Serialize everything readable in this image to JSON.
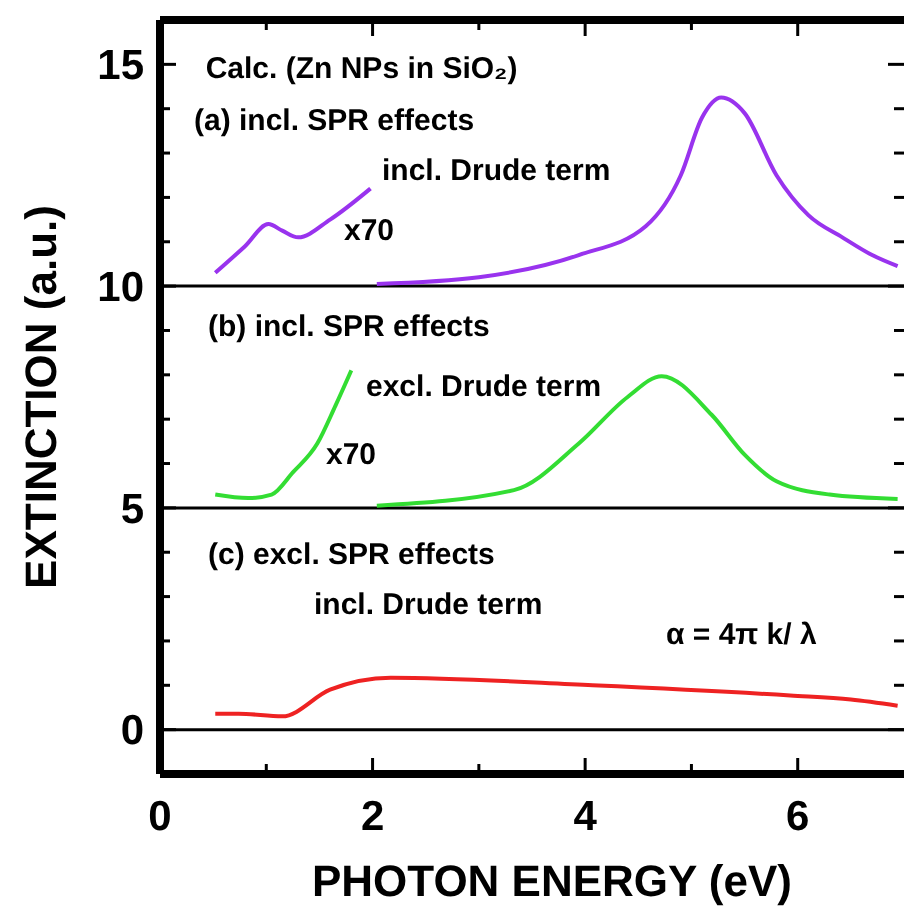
{
  "chart_data": {
    "type": "line",
    "title": "Calc. (Zn NPs in SiO₂)",
    "xlabel": "PHOTON  ENERGY  (eV)",
    "ylabel": "EXTINCTION  (a.u.)",
    "xlim": [
      0,
      7
    ],
    "ylim": [
      -1,
      16
    ],
    "xticks": [
      0,
      {
        "value": 1,
        "label": null
      },
      2,
      {
        "value": 3,
        "label": null
      },
      4,
      {
        "value": 5,
        "label": null
      },
      6
    ],
    "yticks": [
      {
        "value": -1,
        "label": null
      },
      0,
      {
        "value": 1,
        "label": null
      },
      {
        "value": 2,
        "label": null
      },
      {
        "value": 3,
        "label": null
      },
      {
        "value": 4,
        "label": null
      },
      5,
      {
        "value": 6,
        "label": null
      },
      {
        "value": 7,
        "label": null
      },
      {
        "value": 8,
        "label": null
      },
      {
        "value": 9,
        "label": null
      },
      10,
      {
        "value": 11,
        "label": null
      },
      {
        "value": 12,
        "label": null
      },
      {
        "value": 13,
        "label": null
      },
      {
        "value": 14,
        "label": null
      },
      15
    ],
    "grid": false,
    "marker": "none",
    "line_style": "solid",
    "series": [
      {
        "color": "#9933ee",
        "x": [
          0.52,
          0.8,
          1.02,
          1.15,
          1.3,
          1.6,
          1.98
        ],
        "values": [
          10.3,
          10.9,
          11.4,
          11.25,
          11.1,
          11.5,
          12.2
        ]
      },
      {
        "color": "#9933ee",
        "x": [
          2.04,
          3.0,
          3.94,
          4.57,
          4.9,
          5.1,
          5.28,
          5.5,
          5.8,
          6.1,
          6.42,
          6.7,
          6.94
        ],
        "values": [
          10.05,
          10.2,
          10.7,
          11.35,
          12.5,
          13.8,
          14.25,
          13.9,
          12.5,
          11.6,
          11.1,
          10.7,
          10.45
        ]
      },
      {
        "color": "#33dd33",
        "x": [
          0.52,
          0.83,
          1.05,
          1.25,
          1.48,
          1.65,
          1.8
        ],
        "values": [
          5.3,
          5.22,
          5.3,
          5.8,
          6.45,
          7.3,
          8.1
        ]
      },
      {
        "color": "#33dd33",
        "x": [
          2.04,
          3.33,
          3.94,
          4.4,
          4.72,
          5.19,
          5.5,
          5.8,
          6.3,
          6.94
        ],
        "values": [
          5.05,
          5.4,
          6.45,
          7.5,
          7.97,
          7.1,
          6.2,
          5.6,
          5.3,
          5.2
        ]
      },
      {
        "color": "#ee2222",
        "x": [
          0.52,
          0.74,
          1.15,
          1.6,
          2.17,
          4.07,
          5.93,
          6.5,
          6.94
        ],
        "values": [
          0.36,
          0.36,
          0.3,
          0.9,
          1.17,
          1.0,
          0.77,
          0.68,
          0.54
        ]
      }
    ],
    "ref_lines": [
      {
        "axis": "y",
        "value": 10,
        "color": "#000000"
      },
      {
        "axis": "y",
        "value": 5,
        "color": "#000000"
      },
      {
        "axis": "y",
        "value": 0,
        "color": "#000000"
      }
    ],
    "annotations": [
      "(a) incl. SPR effects",
      "incl. Drude term",
      "x70",
      "(b) incl. SPR effects",
      "excl. Drude term",
      "x70",
      "(c) excl. SPR effects",
      "incl. Drude term",
      "α = 4π k/ λ"
    ]
  }
}
